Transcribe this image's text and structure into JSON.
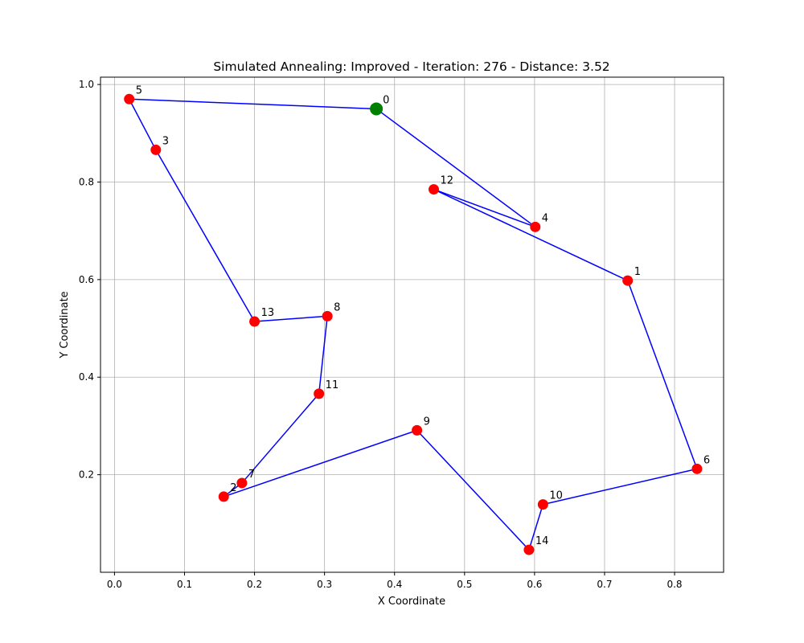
{
  "chart_data": {
    "type": "scatter",
    "title": "Simulated Annealing: Improved - Iteration: 276 - Distance: 3.52",
    "xlabel": "X Coordinate",
    "ylabel": "Y Coordinate",
    "xlim": [
      -0.02,
      0.87
    ],
    "ylim": [
      0.0,
      1.015
    ],
    "grid": true,
    "xticks": [
      0.0,
      0.1,
      0.2,
      0.3,
      0.4,
      0.5,
      0.6,
      0.7,
      0.8
    ],
    "xtick_labels": [
      "0.0",
      "0.1",
      "0.2",
      "0.3",
      "0.4",
      "0.5",
      "0.6",
      "0.7",
      "0.8"
    ],
    "yticks": [
      0.2,
      0.4,
      0.6,
      0.8,
      1.0
    ],
    "ytick_labels": [
      "0.2",
      "0.4",
      "0.6",
      "0.8",
      "1.0"
    ],
    "points": [
      {
        "id": "0",
        "x": 0.374,
        "y": 0.95
      },
      {
        "id": "1",
        "x": 0.733,
        "y": 0.598
      },
      {
        "id": "2",
        "x": 0.156,
        "y": 0.155
      },
      {
        "id": "3",
        "x": 0.059,
        "y": 0.866
      },
      {
        "id": "4",
        "x": 0.601,
        "y": 0.708
      },
      {
        "id": "5",
        "x": 0.021,
        "y": 0.97
      },
      {
        "id": "6",
        "x": 0.832,
        "y": 0.212
      },
      {
        "id": "7",
        "x": 0.182,
        "y": 0.183
      },
      {
        "id": "8",
        "x": 0.304,
        "y": 0.525
      },
      {
        "id": "9",
        "x": 0.432,
        "y": 0.291
      },
      {
        "id": "10",
        "x": 0.612,
        "y": 0.139
      },
      {
        "id": "11",
        "x": 0.292,
        "y": 0.366
      },
      {
        "id": "12",
        "x": 0.456,
        "y": 0.785
      },
      {
        "id": "13",
        "x": 0.2,
        "y": 0.514
      },
      {
        "id": "14",
        "x": 0.592,
        "y": 0.046
      }
    ],
    "route": [
      "0",
      "4",
      "12",
      "1",
      "6",
      "10",
      "14",
      "9",
      "2",
      "7",
      "11",
      "8",
      "13",
      "3",
      "5",
      "0"
    ],
    "start_point": "0",
    "colors": {
      "route": "#0000ff",
      "point": "#ff0000",
      "start": "#008000",
      "grid": "#b0b0b0"
    }
  }
}
